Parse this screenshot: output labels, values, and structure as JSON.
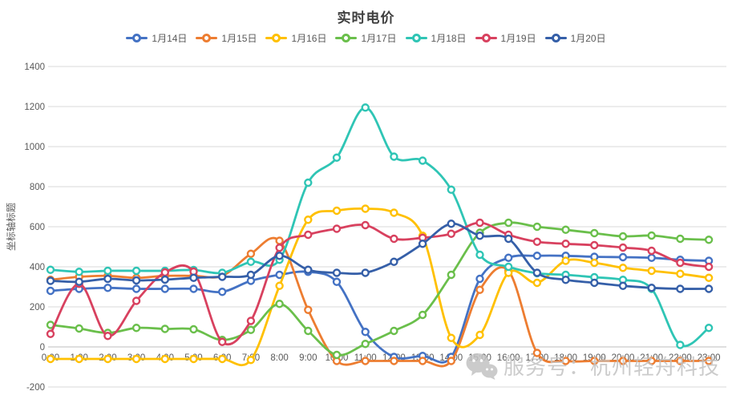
{
  "title": "实时电价",
  "watermark": {
    "icon": "wechat-icon",
    "text": "服务号：杭州轻舟科技"
  },
  "chart_data": {
    "type": "line",
    "title": "实时电价",
    "xlabel": "",
    "ylabel": "坐标轴标题",
    "ylim": [
      -200,
      1400
    ],
    "y_ticks": [
      -200,
      0,
      200,
      400,
      600,
      800,
      1000,
      1200,
      1400
    ],
    "grid": true,
    "smooth": true,
    "marker": "open-circle",
    "legend_position": "top",
    "x_labels": [
      "0:00",
      "1:00",
      "2:00",
      "3:00",
      "4:00",
      "5:00",
      "6:00",
      "7:00",
      "8:00",
      "9:00",
      "10:00",
      "11:00",
      "12:00",
      "13:00",
      "14:00",
      "15:00",
      "16:00",
      "17:00",
      "18:00",
      "19:00",
      "20:00",
      "21:00",
      "22:00",
      "23:00"
    ],
    "series": [
      {
        "name": "1月14日",
        "color": "#4472C4",
        "values": [
          280,
          290,
          295,
          290,
          290,
          290,
          275,
          330,
          360,
          375,
          325,
          75,
          -50,
          -45,
          -50,
          340,
          445,
          455,
          455,
          450,
          448,
          445,
          435,
          430
        ]
      },
      {
        "name": "1月15日",
        "color": "#ED7D31",
        "values": [
          335,
          350,
          355,
          345,
          355,
          355,
          355,
          465,
          530,
          185,
          -70,
          -70,
          -70,
          -70,
          -70,
          285,
          380,
          -30,
          -70,
          -70,
          -70,
          -70,
          -70,
          -70
        ]
      },
      {
        "name": "1月16日",
        "color": "#FFC000",
        "values": [
          -60,
          -60,
          -60,
          -60,
          -60,
          -60,
          -60,
          -65,
          305,
          635,
          680,
          690,
          670,
          555,
          45,
          60,
          370,
          320,
          430,
          420,
          395,
          380,
          365,
          345
        ]
      },
      {
        "name": "1月17日",
        "color": "#6ABF4B",
        "values": [
          110,
          92,
          70,
          95,
          90,
          88,
          35,
          85,
          215,
          80,
          -40,
          15,
          80,
          160,
          360,
          570,
          620,
          600,
          585,
          568,
          552,
          556,
          540,
          535
        ]
      },
      {
        "name": "1月18日",
        "color": "#2FC5B5",
        "values": [
          385,
          375,
          380,
          380,
          380,
          384,
          370,
          425,
          435,
          820,
          945,
          1195,
          950,
          930,
          785,
          460,
          400,
          368,
          360,
          348,
          335,
          290,
          10,
          95
        ]
      },
      {
        "name": "1月19日",
        "color": "#D8415F",
        "values": [
          65,
          315,
          55,
          230,
          372,
          376,
          25,
          130,
          495,
          560,
          590,
          608,
          540,
          545,
          565,
          620,
          560,
          525,
          515,
          508,
          496,
          480,
          420,
          400
        ]
      },
      {
        "name": "1月20日",
        "color": "#355FA8",
        "values": [
          330,
          325,
          340,
          332,
          336,
          345,
          350,
          360,
          455,
          385,
          370,
          370,
          425,
          515,
          615,
          555,
          540,
          370,
          335,
          320,
          305,
          295,
          290,
          290
        ]
      }
    ]
  }
}
